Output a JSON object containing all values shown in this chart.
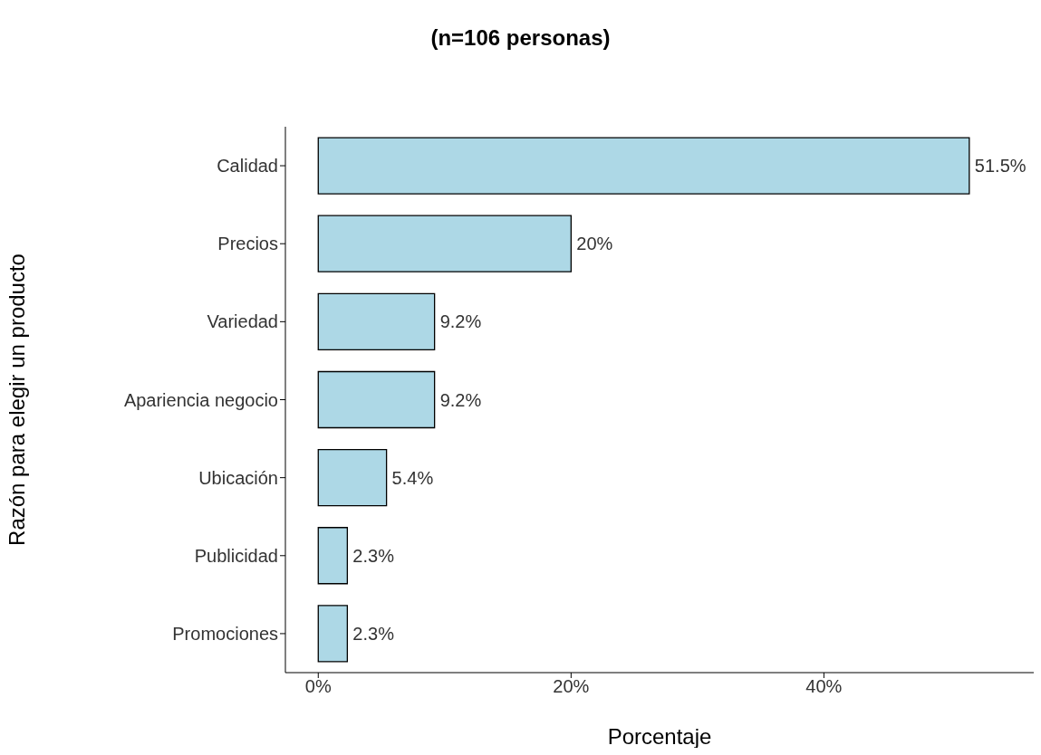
{
  "chart_data": {
    "type": "bar",
    "orientation": "horizontal",
    "title": "(n=106 personas)",
    "xlabel": "Porcentaje",
    "ylabel": "Razón para elegir un producto",
    "categories": [
      "Calidad",
      "Precios",
      "Variedad",
      "Apariencia negocio",
      "Ubicación",
      "Publicidad",
      "Promociones"
    ],
    "values": [
      51.5,
      20,
      9.2,
      9.2,
      5.4,
      2.3,
      2.3
    ],
    "value_labels": [
      "51.5%",
      "20%",
      "9.2%",
      "9.2%",
      "5.4%",
      "2.3%",
      "2.3%"
    ],
    "color": "#add8e6",
    "xlim": [
      -2.6,
      56.6
    ],
    "xticks": [
      {
        "value": 0,
        "label": "0%"
      },
      {
        "value": 20,
        "label": "20%"
      },
      {
        "value": 40,
        "label": "40%"
      }
    ],
    "grid": false,
    "legend": false
  }
}
